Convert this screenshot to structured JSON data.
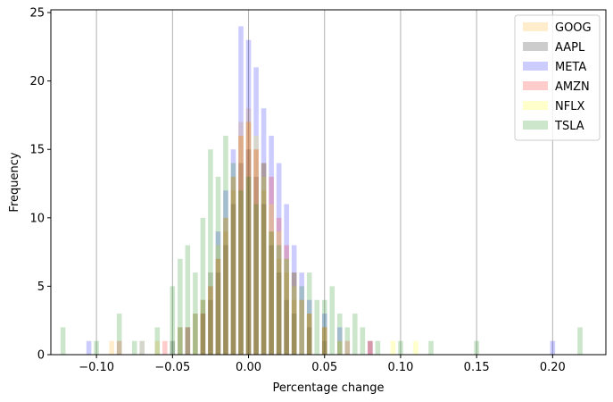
{
  "chart_data": {
    "type": "histogram",
    "title": "",
    "xlabel": "Percentage change",
    "ylabel": "Frequency",
    "xlim": [
      -0.13,
      0.235
    ],
    "ylim": [
      0,
      25.2
    ],
    "xticks": [
      -0.1,
      -0.05,
      0.0,
      0.05,
      0.1,
      0.15,
      0.2
    ],
    "xtick_labels": [
      "−0.10",
      "−0.05",
      "0.00",
      "0.05",
      "0.10",
      "0.15",
      "0.20"
    ],
    "yticks": [
      0,
      5,
      10,
      15,
      20,
      25
    ],
    "ytick_labels": [
      "0",
      "5",
      "10",
      "15",
      "20",
      "25"
    ],
    "grid": "vertical",
    "legend_position": "top-right",
    "alpha": 0.2,
    "series": [
      {
        "name": "GOOG",
        "color": "#ffa500",
        "bins": [
          [
            -0.09,
            1
          ],
          [
            -0.06,
            1
          ],
          [
            -0.045,
            2
          ],
          [
            -0.035,
            3
          ],
          [
            -0.03,
            4
          ],
          [
            -0.025,
            5
          ],
          [
            -0.02,
            7
          ],
          [
            -0.015,
            9
          ],
          [
            -0.01,
            12
          ],
          [
            -0.005,
            17
          ],
          [
            0.0,
            18
          ],
          [
            0.005,
            15
          ],
          [
            0.01,
            12
          ],
          [
            0.015,
            9
          ],
          [
            0.02,
            7
          ],
          [
            0.025,
            6
          ],
          [
            0.03,
            4
          ],
          [
            0.04,
            3
          ],
          [
            0.05,
            2
          ],
          [
            0.06,
            1
          ],
          [
            0.08,
            1
          ]
        ]
      },
      {
        "name": "AAPL",
        "color": "#000000",
        "bins": [
          [
            -0.05,
            1
          ],
          [
            -0.04,
            2
          ],
          [
            -0.03,
            3
          ],
          [
            -0.025,
            4
          ],
          [
            -0.02,
            6
          ],
          [
            -0.015,
            8
          ],
          [
            -0.01,
            11
          ],
          [
            -0.005,
            14
          ],
          [
            0.0,
            15
          ],
          [
            0.005,
            13
          ],
          [
            0.01,
            11
          ],
          [
            0.015,
            8
          ],
          [
            0.02,
            6
          ],
          [
            0.025,
            4
          ],
          [
            0.03,
            3
          ],
          [
            0.04,
            2
          ],
          [
            0.05,
            1
          ]
        ]
      },
      {
        "name": "META",
        "color": "#0000ff",
        "bins": [
          [
            -0.105,
            1
          ],
          [
            -0.07,
            1
          ],
          [
            -0.045,
            2
          ],
          [
            -0.035,
            3
          ],
          [
            -0.03,
            4
          ],
          [
            -0.025,
            6
          ],
          [
            -0.02,
            9
          ],
          [
            -0.015,
            12
          ],
          [
            -0.01,
            15
          ],
          [
            -0.005,
            24
          ],
          [
            0.0,
            23
          ],
          [
            0.005,
            21
          ],
          [
            0.01,
            18
          ],
          [
            0.015,
            16
          ],
          [
            0.02,
            14
          ],
          [
            0.025,
            11
          ],
          [
            0.03,
            8
          ],
          [
            0.035,
            6
          ],
          [
            0.04,
            4
          ],
          [
            0.05,
            3
          ],
          [
            0.06,
            2
          ],
          [
            0.08,
            1
          ],
          [
            0.2,
            1
          ]
        ]
      },
      {
        "name": "AMZN",
        "color": "#ff0000",
        "bins": [
          [
            -0.085,
            1
          ],
          [
            -0.055,
            1
          ],
          [
            -0.04,
            2
          ],
          [
            -0.03,
            3
          ],
          [
            -0.025,
            5
          ],
          [
            -0.02,
            7
          ],
          [
            -0.015,
            10
          ],
          [
            -0.01,
            13
          ],
          [
            -0.005,
            16
          ],
          [
            0.0,
            17
          ],
          [
            0.005,
            15
          ],
          [
            0.01,
            14
          ],
          [
            0.015,
            13
          ],
          [
            0.02,
            10
          ],
          [
            0.025,
            8
          ],
          [
            0.03,
            6
          ],
          [
            0.035,
            4
          ],
          [
            0.04,
            3
          ],
          [
            0.05,
            2
          ],
          [
            0.065,
            1
          ],
          [
            0.08,
            1
          ]
        ]
      },
      {
        "name": "NFLX",
        "color": "#ffff00",
        "bins": [
          [
            -0.07,
            1
          ],
          [
            -0.045,
            2
          ],
          [
            -0.035,
            3
          ],
          [
            -0.03,
            4
          ],
          [
            -0.025,
            6
          ],
          [
            -0.02,
            8
          ],
          [
            -0.015,
            10
          ],
          [
            -0.01,
            13
          ],
          [
            -0.005,
            16
          ],
          [
            0.0,
            17
          ],
          [
            0.005,
            16
          ],
          [
            0.01,
            13
          ],
          [
            0.015,
            11
          ],
          [
            0.02,
            9
          ],
          [
            0.025,
            7
          ],
          [
            0.03,
            5
          ],
          [
            0.035,
            4
          ],
          [
            0.04,
            3
          ],
          [
            0.05,
            2
          ],
          [
            0.06,
            1
          ],
          [
            0.095,
            1
          ],
          [
            0.11,
            1
          ]
        ]
      },
      {
        "name": "TSLA",
        "color": "#008000",
        "bins": [
          [
            -0.122,
            2
          ],
          [
            -0.1,
            1
          ],
          [
            -0.085,
            3
          ],
          [
            -0.075,
            1
          ],
          [
            -0.06,
            2
          ],
          [
            -0.05,
            5
          ],
          [
            -0.045,
            7
          ],
          [
            -0.04,
            8
          ],
          [
            -0.035,
            6
          ],
          [
            -0.03,
            10
          ],
          [
            -0.025,
            15
          ],
          [
            -0.02,
            13
          ],
          [
            -0.015,
            16
          ],
          [
            -0.01,
            14
          ],
          [
            -0.005,
            12
          ],
          [
            0.0,
            13
          ],
          [
            0.005,
            11
          ],
          [
            0.01,
            14
          ],
          [
            0.015,
            9
          ],
          [
            0.02,
            8
          ],
          [
            0.025,
            7
          ],
          [
            0.03,
            6
          ],
          [
            0.035,
            5
          ],
          [
            0.04,
            6
          ],
          [
            0.045,
            4
          ],
          [
            0.05,
            4
          ],
          [
            0.055,
            5
          ],
          [
            0.06,
            3
          ],
          [
            0.065,
            2
          ],
          [
            0.07,
            3
          ],
          [
            0.075,
            2
          ],
          [
            0.085,
            1
          ],
          [
            0.1,
            1
          ],
          [
            0.12,
            1
          ],
          [
            0.15,
            1
          ],
          [
            0.218,
            2
          ]
        ]
      }
    ]
  }
}
